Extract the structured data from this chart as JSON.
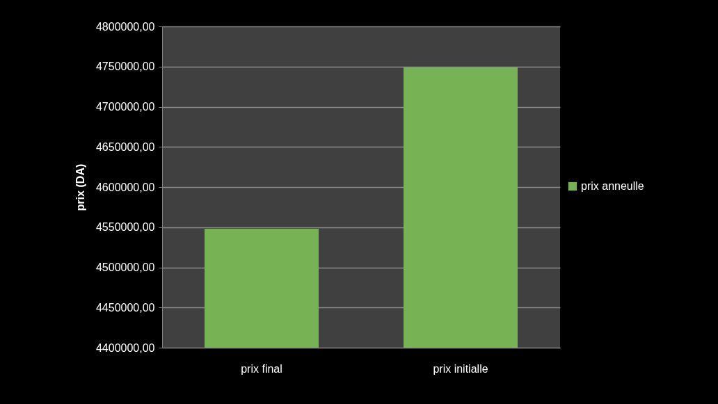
{
  "chart_data": {
    "type": "bar",
    "ylabel": "prix (DA)",
    "categories": [
      "prix final",
      "prix initialle"
    ],
    "series": [
      {
        "name": "prix anneulle",
        "color": "#77b255",
        "values": [
          4548000,
          4749000
        ]
      }
    ],
    "ylim": [
      4400000,
      4800000
    ],
    "yticks": [
      {
        "value": 4400000,
        "label": "4400000,00"
      },
      {
        "value": 4450000,
        "label": "4450000,00"
      },
      {
        "value": 4500000,
        "label": "4500000,00"
      },
      {
        "value": 4550000,
        "label": "4550000,00"
      },
      {
        "value": 4600000,
        "label": "4600000,00"
      },
      {
        "value": 4650000,
        "label": "4650000,00"
      },
      {
        "value": 4700000,
        "label": "4700000,00"
      },
      {
        "value": 4750000,
        "label": "4750000,00"
      },
      {
        "value": 4800000,
        "label": "4800000,00"
      }
    ],
    "grid": "y",
    "legend": "right"
  }
}
